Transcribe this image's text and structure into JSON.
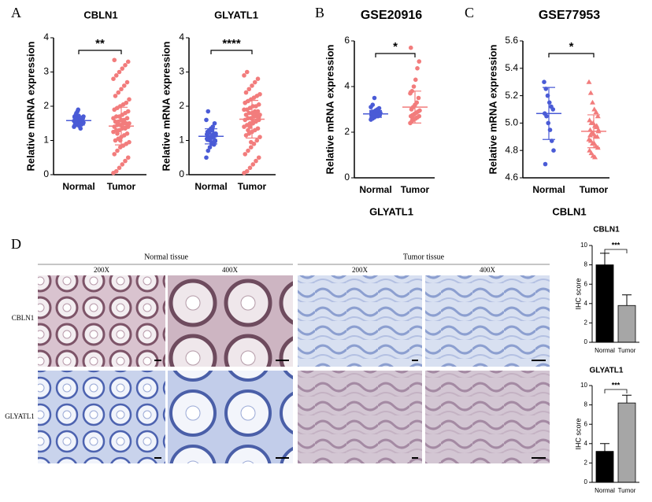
{
  "panel_labels": [
    "A",
    "B",
    "C",
    "D"
  ],
  "ihc": {
    "groups": [
      "Normal tissue",
      "Tumor tissue"
    ],
    "magnifications": [
      "200X",
      "400X",
      "200X",
      "400X"
    ],
    "rows": [
      "CBLN1",
      "GLYATL1"
    ]
  },
  "chart_data": [
    {
      "type": "strip",
      "title": "CBLN1",
      "ylabel": "Relative  mRNA expression",
      "categories": [
        "Normal",
        "Tumor"
      ],
      "ylim": [
        0,
        4
      ],
      "yticks": [
        0,
        1,
        2,
        3,
        4
      ],
      "annotation": "**",
      "series": [
        {
          "color": "#4a5bd6",
          "marker": "circle",
          "mean": 1.58,
          "sd": 0.13,
          "values": [
            1.4,
            1.45,
            1.5,
            1.55,
            1.6,
            1.65,
            1.7,
            1.8,
            1.9,
            1.62,
            1.58,
            1.52,
            1.48,
            1.66,
            1.72,
            1.35,
            1.6,
            1.57,
            1.75,
            1.85,
            1.42,
            1.63,
            1.54,
            1.68,
            1.5,
            1.61,
            1.59,
            1.47,
            1.7,
            1.55
          ]
        },
        {
          "color": "#f27c7c",
          "marker": "circle",
          "mean": 1.42,
          "sd": 0.55,
          "values": [
            0.05,
            0.1,
            0.2,
            0.3,
            0.4,
            0.5,
            0.6,
            0.7,
            0.8,
            0.85,
            0.9,
            0.95,
            1.0,
            1.05,
            1.1,
            1.15,
            1.2,
            1.25,
            1.3,
            1.3,
            1.35,
            1.35,
            1.4,
            1.4,
            1.45,
            1.45,
            1.5,
            1.5,
            1.5,
            1.55,
            1.55,
            1.6,
            1.6,
            1.65,
            1.65,
            1.7,
            1.7,
            1.75,
            1.8,
            1.85,
            1.9,
            1.95,
            2.0,
            2.05,
            2.1,
            2.2,
            2.3,
            2.4,
            2.5,
            2.6,
            2.7,
            2.8,
            2.9,
            3.0,
            3.1,
            3.2,
            3.3,
            3.35,
            1.2,
            1.0
          ]
        }
      ]
    },
    {
      "type": "strip",
      "title": "GLYATL1",
      "ylabel": "Relative  mRNA expression",
      "categories": [
        "Normal",
        "Tumor"
      ],
      "ylim": [
        0,
        4
      ],
      "yticks": [
        0,
        1,
        2,
        3,
        4
      ],
      "annotation": "****",
      "series": [
        {
          "color": "#4a5bd6",
          "marker": "circle",
          "mean": 1.12,
          "sd": 0.22,
          "values": [
            0.5,
            0.7,
            0.8,
            0.9,
            0.95,
            1.0,
            1.05,
            1.1,
            1.1,
            1.15,
            1.2,
            1.2,
            1.25,
            1.3,
            1.35,
            1.4,
            1.5,
            1.6,
            1.85,
            1.0,
            1.12,
            1.08,
            0.98,
            1.18,
            1.22,
            1.05,
            1.3,
            0.88,
            1.15,
            1.02
          ]
        },
        {
          "color": "#f27c7c",
          "marker": "circle",
          "mean": 1.62,
          "sd": 0.55,
          "values": [
            0.05,
            0.1,
            0.2,
            0.3,
            0.4,
            0.5,
            0.6,
            0.7,
            0.8,
            0.9,
            1.0,
            1.1,
            1.15,
            1.2,
            1.25,
            1.3,
            1.35,
            1.4,
            1.45,
            1.5,
            1.5,
            1.55,
            1.6,
            1.6,
            1.65,
            1.65,
            1.7,
            1.7,
            1.75,
            1.75,
            1.8,
            1.8,
            1.85,
            1.85,
            1.9,
            1.9,
            1.95,
            2.0,
            2.0,
            2.05,
            2.1,
            2.15,
            2.2,
            2.25,
            2.3,
            2.35,
            2.4,
            2.5,
            2.6,
            2.7,
            2.8,
            2.9,
            3.0,
            1.4,
            1.55,
            1.78,
            1.68,
            2.1,
            1.3,
            0.95
          ]
        }
      ]
    },
    {
      "type": "strip",
      "title": "GSE20916",
      "ylabel": "Relative  mRNA expression",
      "xlabel": "GLYATL1",
      "categories": [
        "Normal",
        "Tumor"
      ],
      "ylim": [
        0,
        6
      ],
      "yticks": [
        0,
        2,
        4,
        6
      ],
      "annotation": "*",
      "series": [
        {
          "color": "#4a5bd6",
          "marker": "circle",
          "mean": 2.8,
          "sd": 0.15,
          "values": [
            2.55,
            2.6,
            2.65,
            2.7,
            2.7,
            2.75,
            2.75,
            2.8,
            2.8,
            2.8,
            2.85,
            2.85,
            2.9,
            2.9,
            2.95,
            3.0,
            3.05,
            3.1,
            3.2,
            3.5,
            2.72,
            2.78,
            2.82,
            2.88,
            2.68
          ]
        },
        {
          "color": "#f27c7c",
          "marker": "circle",
          "mean": 3.1,
          "sd": 0.7,
          "values": [
            2.4,
            2.5,
            2.55,
            2.6,
            2.65,
            2.7,
            2.7,
            2.75,
            2.8,
            2.85,
            2.9,
            2.95,
            3.0,
            3.1,
            3.2,
            3.3,
            3.5,
            3.7,
            3.8,
            4.0,
            4.3,
            4.8,
            5.1,
            5.7,
            2.6
          ]
        }
      ]
    },
    {
      "type": "strip",
      "title": "GSE77953",
      "ylabel": "Relative  mRNA expression",
      "xlabel": "CBLN1",
      "categories": [
        "Normal",
        "Tumor"
      ],
      "ylim": [
        4.6,
        5.6
      ],
      "yticks": [
        4.6,
        4.8,
        {
          "value": 5,
          "label": "5.0"
        },
        5.2,
        5.4,
        5.6
      ],
      "annotation": "*",
      "series": [
        {
          "color": "#4a5bd6",
          "marker": "circle",
          "mean": 5.07,
          "sd": 0.19,
          "values": [
            5.3,
            5.25,
            5.2,
            5.15,
            5.12,
            5.1,
            5.07,
            5.05,
            5.0,
            4.95,
            4.87,
            4.8,
            4.7
          ]
        },
        {
          "color": "#f27c7c",
          "marker": "triangle",
          "mean": 4.94,
          "sd": 0.12,
          "values": [
            5.3,
            5.22,
            5.15,
            5.1,
            5.08,
            5.05,
            5.02,
            5.0,
            5.0,
            4.98,
            4.97,
            4.95,
            4.95,
            4.93,
            4.92,
            4.9,
            4.9,
            4.88,
            4.87,
            4.85,
            4.85,
            4.83,
            4.82,
            4.8,
            4.78,
            4.76,
            4.75,
            4.98,
            4.94,
            4.91
          ]
        }
      ]
    },
    {
      "type": "bar",
      "title": "CBLN1",
      "ylabel": "IHC score",
      "categories": [
        "Normal",
        "Tumor"
      ],
      "values": [
        8,
        3.8
      ],
      "errors": [
        1.2,
        1.1
      ],
      "colors": [
        "#000000",
        "#a6a6a6"
      ],
      "ylim": [
        0,
        10
      ],
      "yticks": [
        0,
        2,
        4,
        6,
        8,
        10
      ],
      "annotation": "***"
    },
    {
      "type": "bar",
      "title": "GLYATL1",
      "ylabel": "IHC score",
      "categories": [
        "Normal",
        "Tumor"
      ],
      "values": [
        3.2,
        8.2
      ],
      "errors": [
        0.8,
        0.8
      ],
      "colors": [
        "#000000",
        "#a6a6a6"
      ],
      "ylim": [
        0,
        10
      ],
      "yticks": [
        0,
        2,
        4,
        6,
        8,
        10
      ],
      "annotation": "***"
    }
  ]
}
